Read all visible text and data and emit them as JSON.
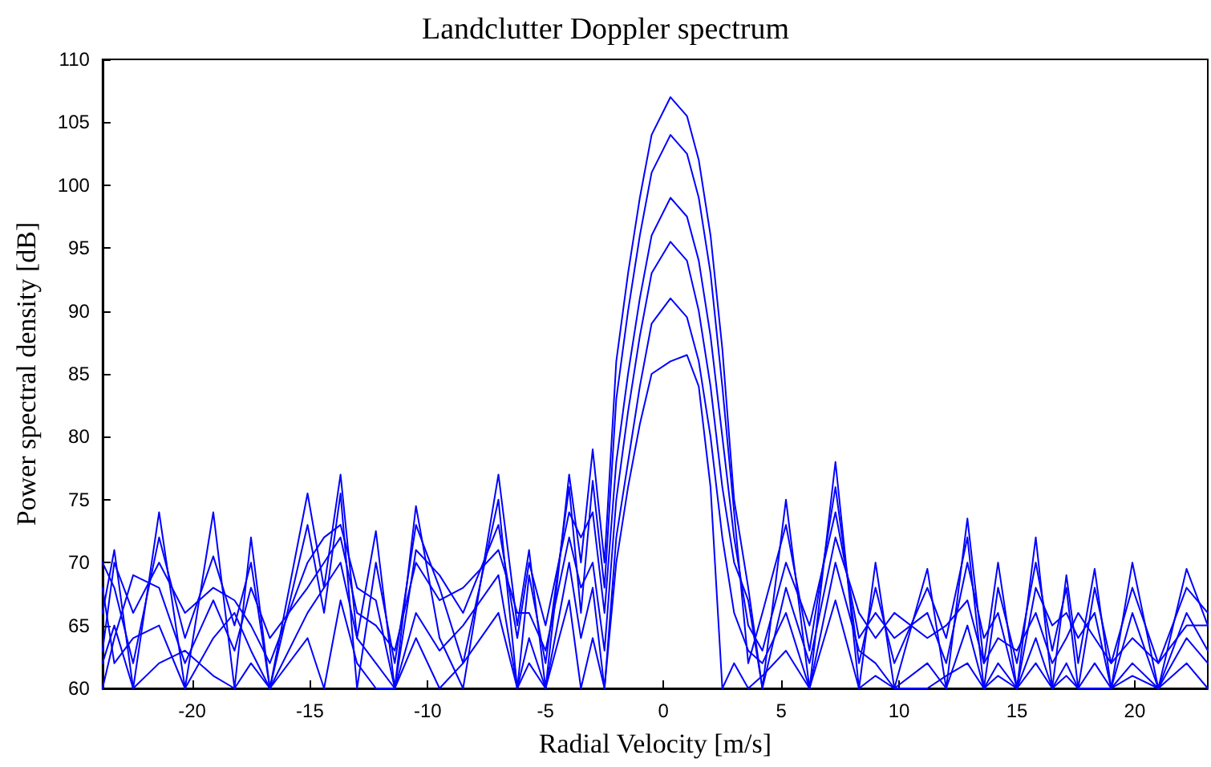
{
  "chart_data": {
    "type": "line",
    "title": "Landclutter Doppler spectrum",
    "xlabel": "Radial Velocity [m/s]",
    "ylabel": "Power spectral density [dB]",
    "x": [
      -23.8,
      -23.3,
      -22.5,
      -21.4,
      -20.3,
      -19.1,
      -18.2,
      -17.5,
      -16.7,
      -15.1,
      -14.4,
      -13.7,
      -13.0,
      -12.2,
      -11.4,
      -10.5,
      -9.5,
      -8.5,
      -7.0,
      -6.2,
      -5.7,
      -5.0,
      -4.0,
      -3.5,
      -3.0,
      -2.5,
      -2.0,
      -1.5,
      -1.0,
      -0.5,
      0.3,
      1.0,
      1.5,
      2.0,
      2.5,
      3.0,
      3.6,
      4.2,
      5.2,
      6.2,
      7.3,
      8.3,
      9.0,
      9.8,
      11.2,
      12.0,
      12.9,
      13.6,
      14.2,
      15.0,
      15.8,
      16.5,
      17.1,
      17.6,
      18.3,
      19.0,
      19.9,
      21.0,
      22.2,
      23.1
    ],
    "series": [
      {
        "color": "#0000ff",
        "values": [
          66,
          71,
          60,
          74,
          60,
          74,
          60,
          72,
          60,
          75.5,
          68,
          77,
          64,
          72.5,
          60,
          74.5,
          64,
          60,
          77,
          65,
          71,
          60,
          77,
          70,
          79,
          70,
          86,
          93,
          99,
          104,
          107,
          105.5,
          102,
          96,
          87,
          75,
          68,
          60,
          75,
          60,
          78,
          60,
          70,
          60,
          69.5,
          60,
          73.5,
          62,
          70,
          60,
          72,
          60,
          69,
          62,
          69.5,
          60,
          70,
          60,
          69.5,
          65
        ]
      },
      {
        "color": "#0000ff",
        "values": [
          70,
          68,
          62,
          72,
          64,
          70.5,
          65,
          70,
          60,
          73,
          66,
          75.5,
          60,
          70,
          62,
          73,
          68,
          62,
          75,
          60,
          69,
          62,
          76,
          66,
          76.5,
          68,
          83,
          90,
          96,
          101,
          104,
          102.5,
          99,
          93,
          84,
          74,
          62,
          66,
          73,
          63,
          76,
          62,
          68,
          62,
          68,
          64,
          72,
          60,
          68,
          62,
          70,
          63,
          68,
          60,
          68,
          62,
          68,
          62,
          68,
          66
        ]
      },
      {
        "color": "#0000ff",
        "values": [
          63,
          70,
          66,
          70,
          66,
          68,
          67,
          65,
          62,
          70,
          72,
          73,
          68,
          67,
          60,
          71,
          69,
          66,
          73,
          64,
          70,
          65,
          74,
          72,
          74,
          66,
          78,
          85,
          91,
          96,
          99,
          97.5,
          94,
          88,
          80,
          72,
          65,
          63,
          70,
          65,
          74,
          64,
          66,
          64,
          66,
          62,
          70,
          64,
          66,
          60,
          68,
          65,
          66,
          64,
          66,
          60,
          66,
          60,
          66,
          63
        ]
      },
      {
        "color": "#0000ff",
        "values": [
          60,
          64,
          69,
          68,
          62,
          67,
          63,
          68,
          64,
          68,
          70,
          72,
          66,
          65,
          63,
          70,
          67,
          68,
          71,
          66,
          66,
          63,
          72,
          68,
          70,
          63,
          75,
          82,
          88,
          93,
          95.5,
          94,
          90,
          84,
          76,
          70,
          67,
          60,
          68,
          62,
          72,
          66,
          64,
          66,
          64,
          65,
          67,
          62,
          64,
          63,
          66,
          62,
          64,
          66,
          64,
          62,
          64,
          62,
          65,
          65
        ]
      },
      {
        "color": "#0000ff",
        "values": [
          68,
          62,
          64,
          65,
          60,
          64,
          66,
          63,
          60,
          66,
          68,
          70,
          64,
          62,
          60,
          66,
          63,
          65,
          69,
          60,
          64,
          60,
          70,
          64,
          68,
          60,
          72,
          78,
          84,
          89,
          91,
          89.5,
          86,
          80,
          72,
          66,
          63,
          62,
          66,
          60,
          70,
          63,
          62,
          60,
          62,
          60,
          65,
          60,
          62,
          60,
          64,
          60,
          62,
          60,
          62,
          60,
          62,
          60,
          64,
          62
        ]
      },
      {
        "color": "#0000ff",
        "values": [
          62,
          65,
          60,
          62,
          63,
          61,
          60,
          62,
          60,
          64,
          60,
          67,
          62,
          60,
          60,
          64,
          60,
          62,
          66,
          60,
          62,
          60,
          67,
          60,
          64,
          60,
          70,
          76,
          81,
          85,
          86,
          86.5,
          84,
          76,
          60,
          62,
          60,
          61,
          63,
          60,
          67,
          60,
          61,
          60,
          60,
          61,
          62,
          60,
          61,
          60,
          62,
          60,
          61,
          60,
          60,
          60,
          61,
          60,
          62,
          60
        ]
      }
    ],
    "xlim": [
      -23.8,
      23.1
    ],
    "xticks": [
      -20,
      -15,
      -10,
      -5,
      0,
      5,
      10,
      15,
      20
    ],
    "ylim": [
      60,
      110
    ],
    "yticks": [
      60,
      65,
      70,
      75,
      80,
      85,
      90,
      95,
      100,
      105,
      110
    ],
    "grid": false,
    "marker": "none",
    "line_style": "solid"
  }
}
